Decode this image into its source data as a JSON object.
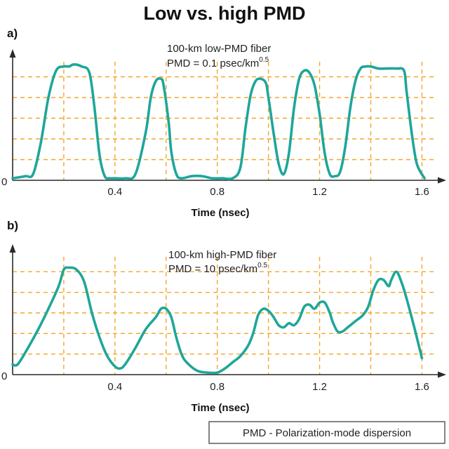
{
  "title": "Low vs. high PMD",
  "footnote": "PMD - Polarization-mode dispersion",
  "colors": {
    "trace": "#1fa69a",
    "grid": "#f4a62a",
    "axis": "#2a2a2a"
  },
  "chart_data": [
    {
      "type": "line",
      "panel": "a)",
      "annotation": [
        "100-km low-PMD fiber",
        "PMD = 0.1 psec/km",
        "0.5"
      ],
      "xlabel": "Time (nsec)",
      "ylabel": "",
      "xlim": [
        0,
        1.64
      ],
      "ylim": [
        0,
        6
      ],
      "x_ticks": [
        "0.4",
        "0.8",
        "1.2",
        "1.6"
      ],
      "y_ticks": [
        "0"
      ],
      "grid": true,
      "series": [
        {
          "x": [
            0.0,
            0.05,
            0.08,
            0.11,
            0.14,
            0.17,
            0.2,
            0.22,
            0.24,
            0.27,
            0.3,
            0.32,
            0.34,
            0.36,
            0.38,
            0.4,
            0.44,
            0.48,
            0.52,
            0.54,
            0.56,
            0.58,
            0.59,
            0.61,
            0.62,
            0.64,
            0.66,
            0.7,
            0.74,
            0.78,
            0.82,
            0.86,
            0.89,
            0.91,
            0.93,
            0.95,
            0.97,
            0.99,
            1.0,
            1.02,
            1.04,
            1.06,
            1.08,
            1.1,
            1.12,
            1.14,
            1.16,
            1.18,
            1.2,
            1.22,
            1.24,
            1.26,
            1.28,
            1.3,
            1.32,
            1.34,
            1.36,
            1.38,
            1.4,
            1.43,
            1.46,
            1.5,
            1.53,
            1.54,
            1.56,
            1.58,
            1.61
          ],
          "y": [
            0.1,
            0.2,
            0.3,
            1.8,
            4.0,
            5.3,
            5.5,
            5.5,
            5.6,
            5.5,
            5.2,
            3.5,
            1.2,
            0.2,
            0.1,
            0.1,
            0.1,
            0.3,
            2.3,
            4.0,
            4.8,
            4.9,
            4.6,
            2.8,
            1.4,
            0.3,
            0.1,
            0.2,
            0.2,
            0.1,
            0.1,
            0.1,
            0.6,
            2.5,
            4.1,
            4.8,
            4.9,
            4.7,
            4.0,
            2.3,
            0.8,
            0.3,
            1.3,
            3.5,
            4.9,
            5.3,
            5.2,
            4.6,
            3.2,
            1.3,
            0.3,
            0.2,
            0.4,
            1.6,
            3.5,
            4.8,
            5.4,
            5.5,
            5.5,
            5.4,
            5.4,
            5.4,
            5.3,
            4.3,
            2.3,
            0.8,
            0.1
          ]
        }
      ]
    },
    {
      "type": "line",
      "panel": "b)",
      "annotation": [
        "100-km high-PMD fiber",
        "PMD = 10 psec/km",
        "0.5"
      ],
      "xlabel": "Time (nsec)",
      "ylabel": "",
      "xlim": [
        0,
        1.64
      ],
      "ylim": [
        0,
        6
      ],
      "x_ticks": [
        "0.4",
        "0.8",
        "1.2",
        "1.6"
      ],
      "y_ticks": [
        "0"
      ],
      "grid": true,
      "series": [
        {
          "x": [
            0.0,
            0.02,
            0.06,
            0.1,
            0.14,
            0.18,
            0.2,
            0.22,
            0.25,
            0.28,
            0.31,
            0.34,
            0.37,
            0.4,
            0.42,
            0.44,
            0.48,
            0.52,
            0.56,
            0.58,
            0.6,
            0.62,
            0.64,
            0.66,
            0.68,
            0.72,
            0.76,
            0.8,
            0.83,
            0.86,
            0.89,
            0.92,
            0.94,
            0.96,
            0.98,
            1.0,
            1.02,
            1.04,
            1.06,
            1.08,
            1.1,
            1.12,
            1.14,
            1.16,
            1.18,
            1.2,
            1.22,
            1.24,
            1.25,
            1.27,
            1.29,
            1.31,
            1.34,
            1.37,
            1.39,
            1.41,
            1.43,
            1.45,
            1.47,
            1.48,
            1.5,
            1.52,
            1.54,
            1.57,
            1.6
          ],
          "y": [
            0.5,
            0.5,
            1.3,
            2.2,
            3.2,
            4.3,
            5.1,
            5.2,
            5.1,
            4.5,
            3.0,
            1.8,
            0.9,
            0.4,
            0.3,
            0.5,
            1.3,
            2.2,
            2.8,
            3.2,
            3.2,
            2.8,
            1.8,
            1.0,
            0.6,
            0.2,
            0.1,
            0.1,
            0.3,
            0.6,
            0.9,
            1.4,
            2.0,
            2.9,
            3.2,
            3.1,
            2.8,
            2.4,
            2.3,
            2.5,
            2.4,
            2.7,
            3.3,
            3.4,
            3.2,
            3.5,
            3.5,
            3.0,
            2.6,
            2.1,
            2.1,
            2.3,
            2.6,
            2.9,
            3.3,
            4.1,
            4.6,
            4.6,
            4.3,
            4.6,
            5.0,
            4.5,
            3.7,
            2.3,
            0.8
          ]
        }
      ]
    }
  ]
}
